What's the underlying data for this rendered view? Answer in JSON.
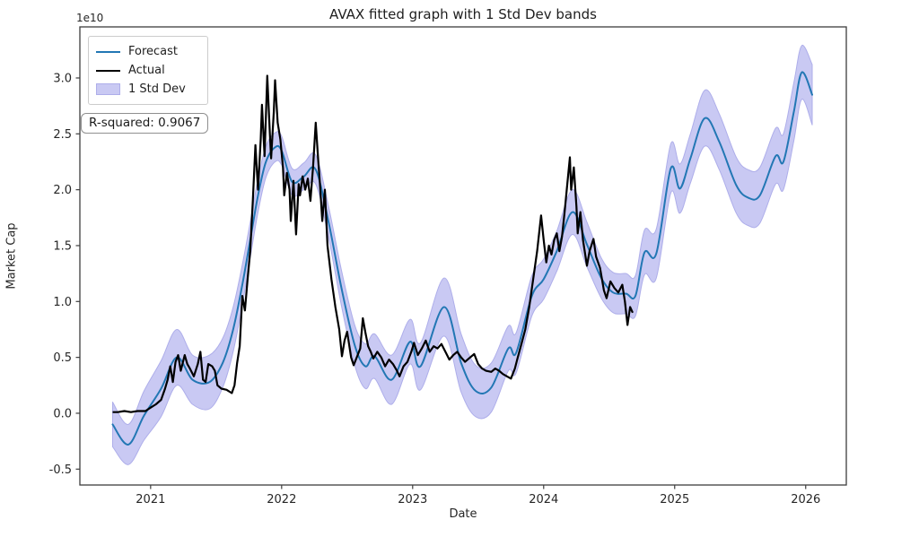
{
  "title": "AVAX fitted graph with 1 Std Dev bands",
  "axes": {
    "xlabel": "Date",
    "ylabel": "Market Cap",
    "y_offset_text": "1e10"
  },
  "annotation": {
    "text": "R-squared: 0.9067"
  },
  "legend": {
    "items": [
      {
        "label": "Forecast",
        "type": "line",
        "color": "#2277b4"
      },
      {
        "label": "Actual",
        "type": "line",
        "color": "#000000"
      },
      {
        "label": "1 Std Dev",
        "type": "patch",
        "color": "#c9c9f3"
      }
    ]
  },
  "colors": {
    "forecast": "#2277b4",
    "actual": "#000000",
    "band_fill": "#c9c9f3",
    "band_edge": "#aeaeea",
    "spine": "#3d3d3d",
    "tick": "#3d3d3d",
    "text": "#262626"
  },
  "chart_data": {
    "type": "line",
    "title": "AVAX fitted graph with 1 Std Dev bands",
    "xlabel": "Date",
    "ylabel": "Market Cap",
    "y_scale_factor": "1e10",
    "grid": false,
    "legend_position": "upper left",
    "xlim": [
      2020.46,
      2026.31
    ],
    "ylim": [
      -0.642,
      3.457
    ],
    "x_ticks": [
      2021,
      2022,
      2023,
      2024,
      2025,
      2026
    ],
    "y_ticks": [
      -0.5,
      0.0,
      0.5,
      1.0,
      1.5,
      2.0,
      2.5,
      3.0
    ],
    "series": [
      {
        "name": "Forecast",
        "style": "smooth-line",
        "x": [
          2020.71,
          2020.83,
          2020.95,
          2021.08,
          2021.2,
          2021.32,
          2021.45,
          2021.55,
          2021.63,
          2021.7,
          2021.76,
          2021.82,
          2021.88,
          2021.95,
          2022.0,
          2022.08,
          2022.17,
          2022.26,
          2022.36,
          2022.46,
          2022.56,
          2022.64,
          2022.71,
          2022.84,
          2022.98,
          2023.06,
          2023.24,
          2023.37,
          2023.48,
          2023.6,
          2023.73,
          2023.79,
          2023.91,
          2024.0,
          2024.1,
          2024.22,
          2024.33,
          2024.44,
          2024.53,
          2024.63,
          2024.7,
          2024.77,
          2024.86,
          2024.97,
          2025.04,
          2025.12,
          2025.23,
          2025.34,
          2025.47,
          2025.56,
          2025.65,
          2025.77,
          2025.83,
          2025.91,
          2025.97,
          2026.05
        ],
        "y": [
          -0.1,
          -0.28,
          -0.02,
          0.22,
          0.5,
          0.3,
          0.28,
          0.45,
          0.75,
          1.15,
          1.55,
          1.95,
          2.25,
          2.38,
          2.35,
          2.07,
          2.12,
          2.18,
          1.7,
          1.1,
          0.6,
          0.42,
          0.51,
          0.3,
          0.64,
          0.42,
          0.95,
          0.45,
          0.2,
          0.23,
          0.58,
          0.54,
          1.05,
          1.2,
          1.45,
          1.8,
          1.51,
          1.21,
          1.08,
          1.07,
          1.05,
          1.44,
          1.43,
          2.19,
          2.01,
          2.28,
          2.64,
          2.43,
          2.04,
          1.93,
          1.95,
          2.3,
          2.25,
          2.7,
          3.05,
          2.85
        ]
      },
      {
        "name": "1 Std Dev",
        "style": "band",
        "attached_to": "Forecast",
        "half_width": [
          0.2,
          0.18,
          0.22,
          0.25,
          0.25,
          0.22,
          0.24,
          0.22,
          0.2,
          0.18,
          0.16,
          0.15,
          0.14,
          0.13,
          0.13,
          0.12,
          0.12,
          0.13,
          0.14,
          0.16,
          0.18,
          0.2,
          0.2,
          0.22,
          0.2,
          0.21,
          0.26,
          0.26,
          0.23,
          0.22,
          0.2,
          0.18,
          0.18,
          0.18,
          0.18,
          0.2,
          0.2,
          0.18,
          0.18,
          0.18,
          0.18,
          0.2,
          0.22,
          0.22,
          0.22,
          0.22,
          0.25,
          0.25,
          0.25,
          0.25,
          0.25,
          0.25,
          0.25,
          0.26,
          0.24,
          0.27
        ]
      },
      {
        "name": "Actual",
        "style": "jagged-line",
        "points": [
          [
            2020.71,
            0.01
          ],
          [
            2020.75,
            0.01
          ],
          [
            2020.8,
            0.02
          ],
          [
            2020.85,
            0.01
          ],
          [
            2020.9,
            0.02
          ],
          [
            2020.96,
            0.02
          ],
          [
            2021.0,
            0.05
          ],
          [
            2021.04,
            0.08
          ],
          [
            2021.08,
            0.12
          ],
          [
            2021.11,
            0.22
          ],
          [
            2021.13,
            0.3
          ],
          [
            2021.15,
            0.42
          ],
          [
            2021.17,
            0.28
          ],
          [
            2021.19,
            0.46
          ],
          [
            2021.21,
            0.52
          ],
          [
            2021.23,
            0.38
          ],
          [
            2021.26,
            0.52
          ],
          [
            2021.28,
            0.44
          ],
          [
            2021.3,
            0.4
          ],
          [
            2021.33,
            0.33
          ],
          [
            2021.36,
            0.44
          ],
          [
            2021.38,
            0.55
          ],
          [
            2021.4,
            0.3
          ],
          [
            2021.42,
            0.28
          ],
          [
            2021.44,
            0.44
          ],
          [
            2021.47,
            0.42
          ],
          [
            2021.49,
            0.38
          ],
          [
            2021.51,
            0.25
          ],
          [
            2021.54,
            0.22
          ],
          [
            2021.58,
            0.21
          ],
          [
            2021.62,
            0.18
          ],
          [
            2021.64,
            0.25
          ],
          [
            2021.66,
            0.45
          ],
          [
            2021.68,
            0.6
          ],
          [
            2021.7,
            1.05
          ],
          [
            2021.72,
            0.92
          ],
          [
            2021.74,
            1.2
          ],
          [
            2021.76,
            1.45
          ],
          [
            2021.78,
            1.9
          ],
          [
            2021.8,
            2.4
          ],
          [
            2021.82,
            2.0
          ],
          [
            2021.84,
            2.45
          ],
          [
            2021.85,
            2.76
          ],
          [
            2021.87,
            2.3
          ],
          [
            2021.89,
            3.02
          ],
          [
            2021.91,
            2.5
          ],
          [
            2021.92,
            2.28
          ],
          [
            2021.94,
            2.7
          ],
          [
            2021.95,
            2.98
          ],
          [
            2021.97,
            2.6
          ],
          [
            2021.99,
            2.45
          ],
          [
            2022.01,
            2.2
          ],
          [
            2022.02,
            1.95
          ],
          [
            2022.04,
            2.15
          ],
          [
            2022.06,
            2.0
          ],
          [
            2022.07,
            1.72
          ],
          [
            2022.09,
            2.08
          ],
          [
            2022.11,
            1.6
          ],
          [
            2022.13,
            2.05
          ],
          [
            2022.14,
            1.95
          ],
          [
            2022.16,
            2.12
          ],
          [
            2022.18,
            2.0
          ],
          [
            2022.2,
            2.1
          ],
          [
            2022.22,
            1.9
          ],
          [
            2022.24,
            2.2
          ],
          [
            2022.26,
            2.6
          ],
          [
            2022.28,
            2.25
          ],
          [
            2022.29,
            2.1
          ],
          [
            2022.31,
            1.72
          ],
          [
            2022.33,
            2.0
          ],
          [
            2022.35,
            1.5
          ],
          [
            2022.38,
            1.2
          ],
          [
            2022.41,
            0.95
          ],
          [
            2022.44,
            0.75
          ],
          [
            2022.46,
            0.51
          ],
          [
            2022.48,
            0.65
          ],
          [
            2022.5,
            0.73
          ],
          [
            2022.53,
            0.5
          ],
          [
            2022.55,
            0.43
          ],
          [
            2022.58,
            0.52
          ],
          [
            2022.6,
            0.58
          ],
          [
            2022.62,
            0.85
          ],
          [
            2022.64,
            0.72
          ],
          [
            2022.66,
            0.6
          ],
          [
            2022.68,
            0.55
          ],
          [
            2022.7,
            0.49
          ],
          [
            2022.73,
            0.55
          ],
          [
            2022.76,
            0.5
          ],
          [
            2022.79,
            0.42
          ],
          [
            2022.82,
            0.48
          ],
          [
            2022.85,
            0.44
          ],
          [
            2022.88,
            0.38
          ],
          [
            2022.9,
            0.33
          ],
          [
            2022.93,
            0.42
          ],
          [
            2022.96,
            0.46
          ],
          [
            2022.99,
            0.55
          ],
          [
            2023.01,
            0.63
          ],
          [
            2023.04,
            0.52
          ],
          [
            2023.07,
            0.58
          ],
          [
            2023.1,
            0.65
          ],
          [
            2023.13,
            0.55
          ],
          [
            2023.16,
            0.6
          ],
          [
            2023.19,
            0.58
          ],
          [
            2023.22,
            0.62
          ],
          [
            2023.25,
            0.55
          ],
          [
            2023.28,
            0.48
          ],
          [
            2023.31,
            0.52
          ],
          [
            2023.34,
            0.55
          ],
          [
            2023.37,
            0.5
          ],
          [
            2023.4,
            0.46
          ],
          [
            2023.44,
            0.5
          ],
          [
            2023.47,
            0.53
          ],
          [
            2023.5,
            0.44
          ],
          [
            2023.53,
            0.4
          ],
          [
            2023.56,
            0.38
          ],
          [
            2023.6,
            0.37
          ],
          [
            2023.63,
            0.4
          ],
          [
            2023.66,
            0.38
          ],
          [
            2023.69,
            0.35
          ],
          [
            2023.72,
            0.33
          ],
          [
            2023.75,
            0.31
          ],
          [
            2023.78,
            0.4
          ],
          [
            2023.8,
            0.49
          ],
          [
            2023.83,
            0.62
          ],
          [
            2023.86,
            0.75
          ],
          [
            2023.89,
            0.95
          ],
          [
            2023.92,
            1.2
          ],
          [
            2023.95,
            1.45
          ],
          [
            2023.98,
            1.77
          ],
          [
            2024.0,
            1.55
          ],
          [
            2024.02,
            1.35
          ],
          [
            2024.04,
            1.5
          ],
          [
            2024.06,
            1.42
          ],
          [
            2024.08,
            1.55
          ],
          [
            2024.1,
            1.61
          ],
          [
            2024.12,
            1.45
          ],
          [
            2024.14,
            1.58
          ],
          [
            2024.16,
            1.8
          ],
          [
            2024.18,
            2.05
          ],
          [
            2024.2,
            2.29
          ],
          [
            2024.21,
            2.0
          ],
          [
            2024.23,
            2.2
          ],
          [
            2024.25,
            1.85
          ],
          [
            2024.26,
            1.61
          ],
          [
            2024.28,
            1.8
          ],
          [
            2024.3,
            1.55
          ],
          [
            2024.33,
            1.32
          ],
          [
            2024.35,
            1.45
          ],
          [
            2024.38,
            1.56
          ],
          [
            2024.4,
            1.4
          ],
          [
            2024.43,
            1.3
          ],
          [
            2024.46,
            1.1
          ],
          [
            2024.48,
            1.03
          ],
          [
            2024.51,
            1.18
          ],
          [
            2024.54,
            1.12
          ],
          [
            2024.57,
            1.08
          ],
          [
            2024.6,
            1.15
          ],
          [
            2024.62,
            1.0
          ],
          [
            2024.64,
            0.79
          ],
          [
            2024.66,
            0.95
          ],
          [
            2024.68,
            0.9
          ]
        ]
      }
    ]
  }
}
